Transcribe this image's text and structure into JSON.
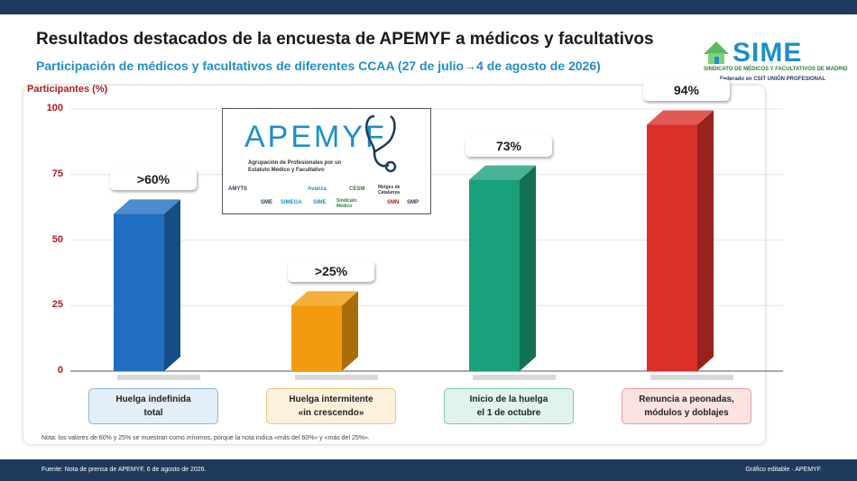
{
  "header": {
    "title": "Resultados destacados de la encuesta de APEMYF a médicos y facultativos",
    "subtitle": "Participación de médicos y facultativos de diferentes CCAA (27 de julio→4 de agosto de 2026)"
  },
  "logo": {
    "name": "SIME",
    "line1": "SINDICATO DE MÉDICOS Y FACULTATIVOS DE MADRID",
    "line2": "Federado en CSIT UNIÓN PROFESIONAL"
  },
  "inset": {
    "name": "APEMYF",
    "description": "Agrupación de Profesionales por un Estatuto Médico y Facultativo",
    "organizations": [
      "AMYTS",
      "Avanza",
      "CESM",
      "Metges de Catalunya",
      "SME",
      "SIMEGA",
      "SIME",
      "Sindicato Médico",
      "SMN",
      "SMP"
    ]
  },
  "chart_data": {
    "type": "bar",
    "ylabel": "Participantes (%)",
    "ylim": [
      0,
      100
    ],
    "yticks": [
      0,
      25,
      50,
      75,
      100
    ],
    "categories": [
      "Huelga indefinida\ntotal",
      "Huelga intermitente\n«in crescendo»",
      "Inicio de la huelga\nel 1 de octubre",
      "Renuncia a peonadas,\nmódulos y doblajes"
    ],
    "values": [
      60,
      25,
      73,
      94
    ],
    "data_labels": [
      ">60%",
      ">25%",
      "73%",
      "94%"
    ],
    "colors": [
      "#1f6ebf",
      "#f29b0c",
      "#1aa07a",
      "#d9302a"
    ],
    "label_bg": [
      "#e3eef6",
      "#fdf1de",
      "#e0f3ec",
      "#fbe3e1"
    ],
    "label_border": [
      "#8fb7d6",
      "#f2c27a",
      "#7fcab1",
      "#e7a09a"
    ],
    "grid": true,
    "note": "Nota: los valores de 60% y 25% se muestran como mínimos, porque la nota indica «más del 60%» y «más del 25%»."
  },
  "footer": {
    "source": "Fuente: Nota de prensa de APEMYF, 6 de agosto de 2026.",
    "editable": "Gráfico editable · APEMYF"
  }
}
